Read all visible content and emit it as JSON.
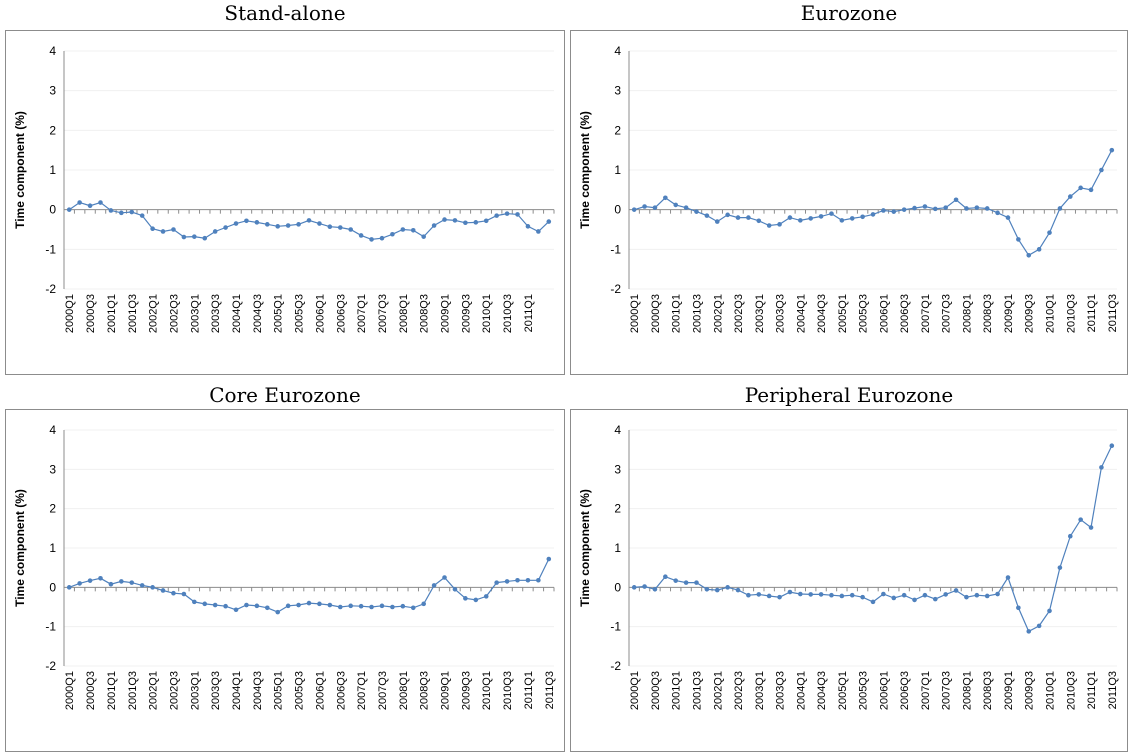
{
  "colors": {
    "series": "#4f81bd",
    "axis": "#8c8c8c",
    "frame": "#8c8c8c",
    "grid": "#f0f0f0"
  },
  "x_periods": [
    "2000Q1",
    "2000Q2",
    "2000Q3",
    "2000Q4",
    "2001Q1",
    "2001Q2",
    "2001Q3",
    "2001Q4",
    "2002Q1",
    "2002Q2",
    "2002Q3",
    "2002Q4",
    "2003Q1",
    "2003Q2",
    "2003Q3",
    "2003Q4",
    "2004Q1",
    "2004Q2",
    "2004Q3",
    "2004Q4",
    "2005Q1",
    "2005Q2",
    "2005Q3",
    "2005Q4",
    "2006Q1",
    "2006Q2",
    "2006Q3",
    "2006Q4",
    "2007Q1",
    "2007Q2",
    "2007Q3",
    "2007Q4",
    "2008Q1",
    "2008Q2",
    "2008Q3",
    "2008Q4",
    "2009Q1",
    "2009Q2",
    "2009Q3",
    "2009Q4",
    "2010Q1",
    "2010Q2",
    "2010Q3",
    "2010Q4",
    "2011Q1",
    "2011Q2",
    "2011Q3"
  ],
  "chart_data": [
    {
      "type": "line",
      "title": "Stand-alone",
      "ylabel": "Time component (%)",
      "ylim": [
        -2,
        4
      ],
      "yticks": [
        -2,
        -1,
        0,
        1,
        2,
        3,
        4
      ],
      "xtick_labels": [
        "2000Q1",
        "2000Q3",
        "2001Q1",
        "2001Q3",
        "2002Q1",
        "2002Q3",
        "2003Q1",
        "2003Q3",
        "2004Q1",
        "2004Q3",
        "2005Q1",
        "2005Q3",
        "2006Q1",
        "2006Q3",
        "2007Q1",
        "2007Q3",
        "2008Q1",
        "2008Q3",
        "2009Q1",
        "2009Q3",
        "2010Q1",
        "2010Q3",
        "2011Q1"
      ],
      "grid": true,
      "values": [
        0,
        0.18,
        0.1,
        0.18,
        -0.02,
        -0.08,
        -0.06,
        -0.15,
        -0.48,
        -0.55,
        -0.5,
        -0.69,
        -0.68,
        -0.72,
        -0.55,
        -0.45,
        -0.35,
        -0.28,
        -0.32,
        -0.37,
        -0.42,
        -0.4,
        -0.37,
        -0.27,
        -0.35,
        -0.43,
        -0.45,
        -0.5,
        -0.65,
        -0.75,
        -0.72,
        -0.62,
        -0.5,
        -0.52,
        -0.68,
        -0.4,
        -0.25,
        -0.27,
        -0.33,
        -0.32,
        -0.28,
        -0.15,
        -0.1,
        -0.12,
        -0.42,
        -0.55,
        -0.3
      ]
    },
    {
      "type": "line",
      "title": "Eurozone",
      "ylabel": "Time component (%)",
      "ylim": [
        -2,
        4
      ],
      "yticks": [
        -2,
        -1,
        0,
        1,
        2,
        3,
        4
      ],
      "xtick_labels": [
        "2000Q1",
        "2000Q3",
        "2001Q1",
        "2001Q3",
        "2002Q1",
        "2002Q3",
        "2003Q1",
        "2003Q3",
        "2004Q1",
        "2004Q3",
        "2005Q1",
        "2005Q3",
        "2006Q1",
        "2006Q3",
        "2007Q1",
        "2007Q3",
        "2008Q1",
        "2008Q3",
        "2009Q1",
        "2009Q3",
        "2010Q1",
        "2010Q3",
        "2011Q1",
        "2011Q3"
      ],
      "grid": true,
      "values": [
        0,
        0.08,
        0.05,
        0.3,
        0.12,
        0.05,
        -0.05,
        -0.15,
        -0.3,
        -0.13,
        -0.2,
        -0.2,
        -0.28,
        -0.4,
        -0.37,
        -0.2,
        -0.27,
        -0.22,
        -0.17,
        -0.1,
        -0.27,
        -0.22,
        -0.18,
        -0.12,
        -0.02,
        -0.05,
        0.0,
        0.04,
        0.08,
        0.02,
        0.05,
        0.25,
        0.03,
        0.05,
        0.03,
        -0.08,
        -0.2,
        -0.75,
        -1.15,
        -1.0,
        -0.58,
        0.03,
        0.33,
        0.55,
        0.5,
        1.0,
        1.5
      ]
    },
    {
      "type": "line",
      "title": "Core Eurozone",
      "ylabel": "Time component (%)",
      "ylim": [
        -2,
        4
      ],
      "yticks": [
        -2,
        -1,
        0,
        1,
        2,
        3,
        4
      ],
      "xtick_labels": [
        "2000Q1",
        "2000Q3",
        "2001Q1",
        "2001Q3",
        "2002Q1",
        "2002Q3",
        "2003Q1",
        "2003Q3",
        "2004Q1",
        "2004Q3",
        "2005Q1",
        "2005Q3",
        "2006Q1",
        "2006Q3",
        "2007Q1",
        "2007Q3",
        "2008Q1",
        "2008Q3",
        "2009Q1",
        "2009Q3",
        "2010Q1",
        "2010Q3",
        "2011Q1",
        "2011Q3"
      ],
      "grid": true,
      "values": [
        0,
        0.1,
        0.17,
        0.23,
        0.08,
        0.15,
        0.12,
        0.05,
        0.0,
        -0.08,
        -0.15,
        -0.17,
        -0.37,
        -0.42,
        -0.45,
        -0.48,
        -0.57,
        -0.45,
        -0.47,
        -0.52,
        -0.63,
        -0.47,
        -0.45,
        -0.4,
        -0.42,
        -0.45,
        -0.5,
        -0.47,
        -0.48,
        -0.5,
        -0.47,
        -0.5,
        -0.48,
        -0.52,
        -0.42,
        0.05,
        0.25,
        -0.05,
        -0.28,
        -0.32,
        -0.23,
        0.12,
        0.15,
        0.18,
        0.18,
        0.18,
        0.72
      ]
    },
    {
      "type": "line",
      "title": "Peripheral Eurozone",
      "ylabel": "Time component (%)",
      "ylim": [
        -2,
        4
      ],
      "yticks": [
        -2,
        -1,
        0,
        1,
        2,
        3,
        4
      ],
      "xtick_labels": [
        "2000Q1",
        "2000Q3",
        "2001Q1",
        "2001Q3",
        "2002Q1",
        "2002Q3",
        "2003Q1",
        "2003Q3",
        "2004Q1",
        "2004Q3",
        "2005Q1",
        "2005Q3",
        "2006Q1",
        "2006Q3",
        "2007Q1",
        "2007Q3",
        "2008Q1",
        "2008Q3",
        "2009Q1",
        "2009Q3",
        "2010Q1",
        "2010Q3",
        "2011Q1",
        "2011Q3"
      ],
      "grid": true,
      "values": [
        0,
        0.02,
        -0.05,
        0.27,
        0.17,
        0.12,
        0.12,
        -0.05,
        -0.07,
        0.0,
        -0.07,
        -0.2,
        -0.18,
        -0.22,
        -0.25,
        -0.12,
        -0.17,
        -0.18,
        -0.18,
        -0.2,
        -0.22,
        -0.2,
        -0.25,
        -0.37,
        -0.17,
        -0.27,
        -0.2,
        -0.32,
        -0.2,
        -0.3,
        -0.18,
        -0.08,
        -0.25,
        -0.2,
        -0.22,
        -0.17,
        0.25,
        -0.52,
        -1.12,
        -0.98,
        -0.6,
        0.5,
        1.3,
        1.72,
        1.52,
        3.05,
        3.6
      ]
    }
  ]
}
